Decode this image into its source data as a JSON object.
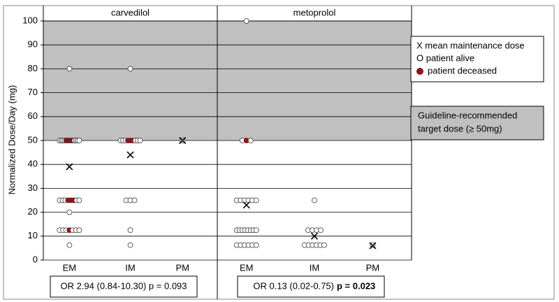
{
  "chart_data": {
    "type": "dot",
    "y_label": "Normalized Dose/Day (mg)",
    "ylim": [
      0,
      100
    ],
    "yticks": [
      0,
      10,
      20,
      30,
      40,
      50,
      60,
      70,
      80,
      90,
      100
    ],
    "grid": true,
    "shade_from": 50,
    "shade_color": "#c0c0c0",
    "series": [
      {
        "name": "X mean maintenance dose",
        "color": "#000000"
      },
      {
        "name": "O patient alive",
        "color": "#ffffff"
      },
      {
        "name": "patient deceased",
        "color": "#c00000"
      }
    ],
    "shade_label": [
      "Guideline-recommended",
      "target dose (≥ 50mg)"
    ],
    "panels": [
      {
        "title": "carvedilol",
        "categories": [
          "EM",
          "IM",
          "PM"
        ],
        "mean": [
          39,
          44,
          50
        ],
        "alive": [
          [
            80,
            50,
            50,
            50,
            50,
            50,
            50,
            50,
            50,
            25,
            25,
            25,
            25,
            25,
            20,
            12.5,
            12.5,
            12.5,
            12.5,
            12.5,
            12.5,
            6.25
          ],
          [
            80,
            50,
            50,
            50,
            50,
            50,
            50,
            25,
            25,
            25,
            12.5,
            6.25
          ],
          [
            50
          ]
        ],
        "deceased": [
          [
            50,
            50,
            50,
            50,
            50,
            25,
            25,
            25,
            12.5
          ],
          [
            50,
            50,
            50
          ],
          []
        ],
        "annotation": "OR 2.94 (0.84-10.30) p = 0.093"
      },
      {
        "title": "metoprolol",
        "categories": [
          "EM",
          "IM",
          "PM"
        ],
        "mean": [
          23,
          10,
          6
        ],
        "alive": [
          [
            100,
            50,
            50,
            25,
            25,
            25,
            25,
            25,
            25,
            12.5,
            12.5,
            12.5,
            12.5,
            12.5,
            12.5,
            12.5,
            12.5,
            6.25,
            6.25,
            6.25,
            6.25,
            6.25,
            6.25
          ],
          [
            25,
            12.5,
            12.5,
            12.5,
            12.5,
            6.25,
            6.25,
            6.25,
            6.25,
            6.25,
            6.25
          ],
          [
            6.25
          ]
        ],
        "deceased": [
          [
            50
          ],
          [],
          []
        ],
        "annotation": "OR 0.13 (0.02-0.75)",
        "annotation_bold": "p = 0.023"
      }
    ]
  }
}
